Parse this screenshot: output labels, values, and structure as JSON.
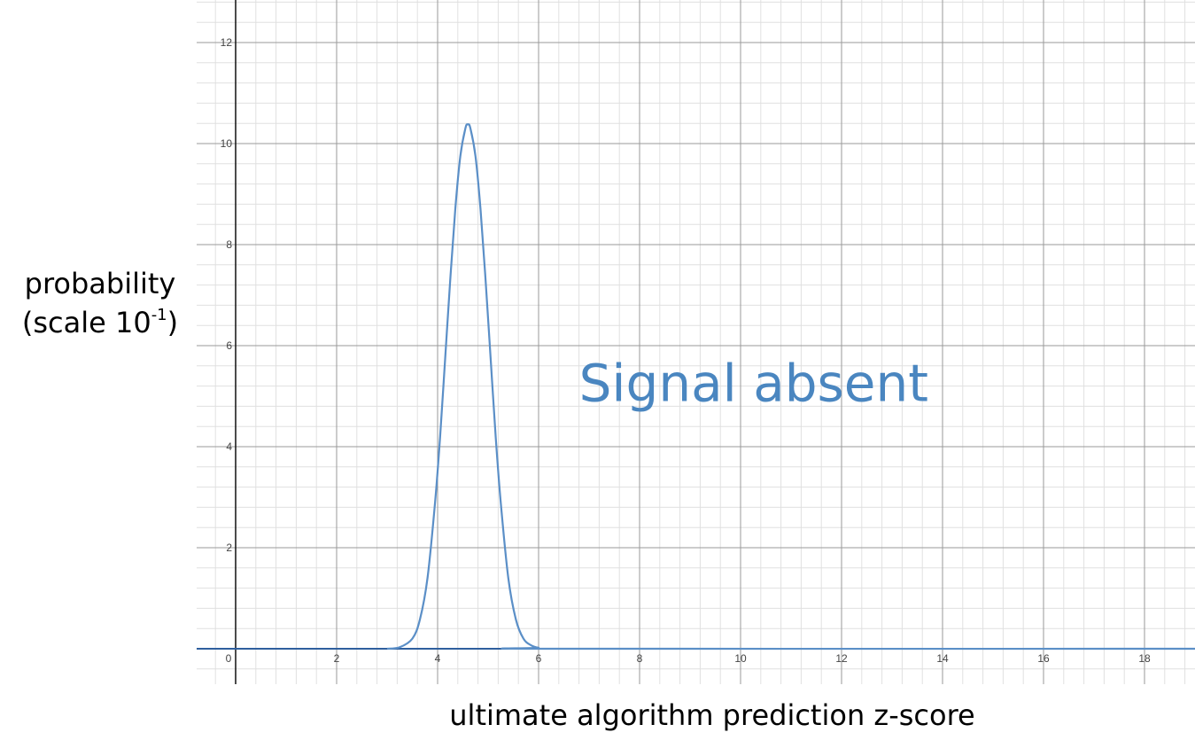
{
  "chart_data": {
    "type": "line",
    "title": "",
    "xlabel": "ultimate algorithm prediction z-score",
    "ylabel": {
      "line1": "probability",
      "line2_prefix": "(scale 10",
      "line2_exponent": "-1",
      "line2_suffix": ")"
    },
    "xlim": [
      -0.8,
      19
    ],
    "ylim": [
      -0.7,
      12.8
    ],
    "x_ticks": [
      0,
      2,
      4,
      6,
      8,
      10,
      12,
      14,
      16,
      18
    ],
    "x_tick_labels": [
      "0",
      "2",
      "4",
      "6",
      "8",
      "10",
      "12",
      "14",
      "16",
      "18"
    ],
    "y_ticks": [
      2,
      4,
      6,
      8,
      10,
      12
    ],
    "y_tick_labels": [
      "2",
      "4",
      "6",
      "8",
      "10",
      "12"
    ],
    "grid": true,
    "series": [
      {
        "color": "#5b8fc7",
        "x": [
          3.0,
          3.25,
          3.5,
          3.65,
          3.8,
          3.95,
          4.05,
          4.15,
          4.25,
          4.35,
          4.45,
          4.55,
          4.6,
          4.65,
          4.75,
          4.85,
          4.95,
          5.05,
          5.15,
          5.25,
          5.4,
          5.55,
          5.7,
          5.85,
          6.0,
          6.3,
          19.0
        ],
        "y": [
          0.0,
          0.03,
          0.2,
          0.58,
          1.4,
          2.9,
          4.2,
          5.75,
          7.3,
          8.7,
          9.75,
          10.3,
          10.38,
          10.3,
          9.75,
          8.7,
          7.3,
          5.75,
          4.2,
          2.9,
          1.4,
          0.58,
          0.2,
          0.07,
          0.02,
          0.0,
          0.0
        ]
      }
    ],
    "annotations": [
      {
        "text": "Signal absent",
        "x": 6.8,
        "y": 4.9,
        "color": "#4a86c0"
      }
    ],
    "colors": {
      "axis": "#111111",
      "major_grid": "#9a9a9a",
      "minor_grid": "#e0e0e0",
      "baseline": "#2f5f9e"
    }
  }
}
